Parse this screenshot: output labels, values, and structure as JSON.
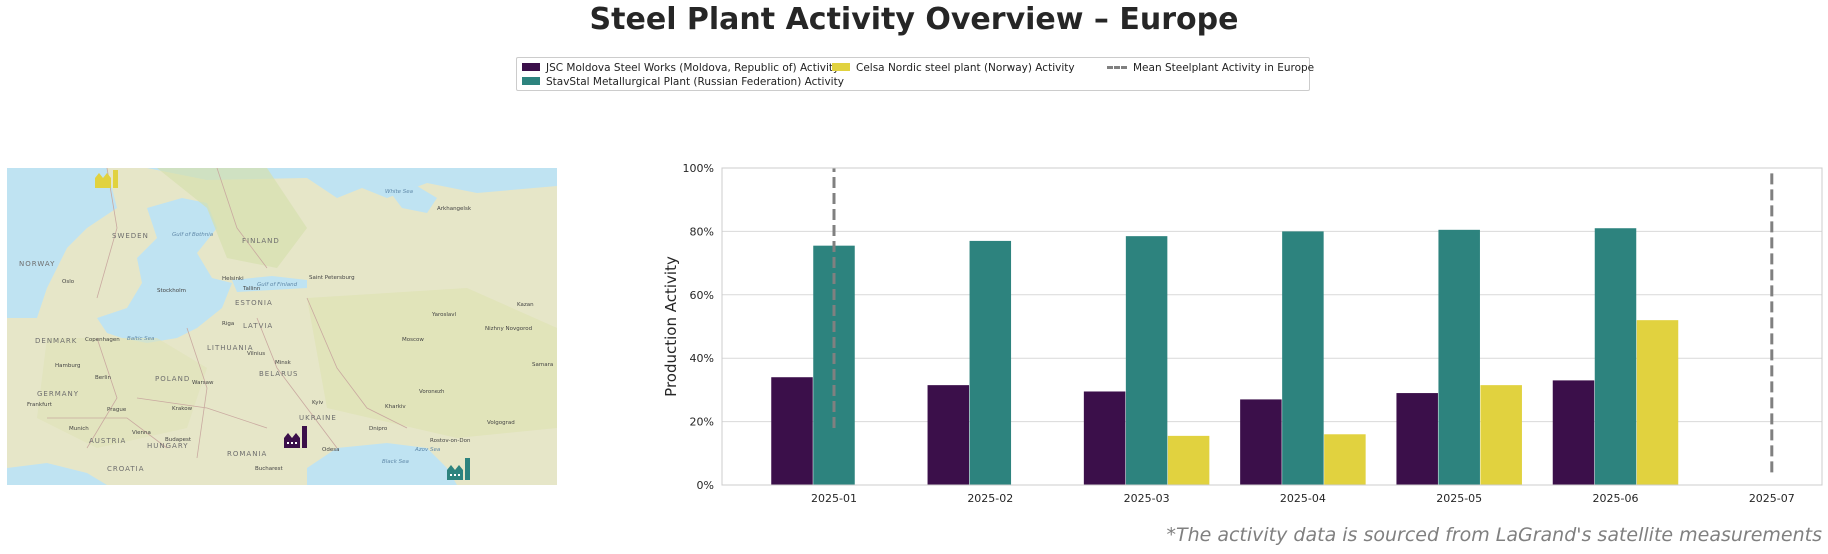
{
  "title": "Steel Plant Activity Overview – Europe",
  "legend": [
    {
      "label": "JSC Moldova Steel Works (Moldova, Republic of) Activity",
      "color": "#3b0f4a",
      "kind": "bar"
    },
    {
      "label": "StavStal Metallurgical Plant (Russian Federation) Activity",
      "color": "#2d837e",
      "kind": "bar"
    },
    {
      "label": "Celsa Nordic steel plant (Norway) Activity",
      "color": "#e1d23f",
      "kind": "bar"
    },
    {
      "label": "Mean Steelplant Activity in Europe",
      "color": "#808080",
      "kind": "dashed-line"
    }
  ],
  "map": {
    "country_labels": [
      "SWEDEN",
      "FINLAND",
      "NORWAY",
      "ESTONIA",
      "LATVIA",
      "LITHUANIA",
      "BELARUS",
      "POLAND",
      "GERMANY",
      "UKRAINE",
      "DENMARK",
      "AUSTRIA",
      "HUNGARY",
      "ROMANIA",
      "CROATIA"
    ],
    "city_labels": [
      "Oslo",
      "Stockholm",
      "Helsinki",
      "Tallinn",
      "Saint Petersburg",
      "Riga",
      "Vilnius",
      "Minsk",
      "Warsaw",
      "Berlin",
      "Copenhagen",
      "Hamburg",
      "Prague",
      "Vienna",
      "Budapest",
      "Bucharest",
      "Kyiv",
      "Odesa",
      "Moscow",
      "Arkhangelsk",
      "Yaroslavl",
      "Nizhny Novgorod",
      "Voronezh",
      "Kharkiv",
      "Dnipro",
      "Rostov-on-Don",
      "Volgograd",
      "Samara",
      "Kazan",
      "Krakow",
      "Munich",
      "Frankfurt",
      "Baltic Sea",
      "Gulf of Bothnia",
      "Gulf of Finland",
      "White Sea",
      "Black Sea",
      "Azov Sea"
    ],
    "plant_icons": [
      {
        "name": "Celsa Nordic steel plant",
        "color": "#e1d23f"
      },
      {
        "name": "JSC Moldova Steel Works",
        "color": "#3b0f4a"
      },
      {
        "name": "StavStal Metallurgical Plant",
        "color": "#2d837e"
      }
    ]
  },
  "chart_data": {
    "type": "bar",
    "categories": [
      "2025-01",
      "2025-02",
      "2025-03",
      "2025-04",
      "2025-05",
      "2025-06",
      "2025-07"
    ],
    "series": [
      {
        "name": "JSC Moldova Steel Works (Moldova, Republic of) Activity",
        "color": "#3b0f4a",
        "values": [
          34,
          31.5,
          29.5,
          27,
          29,
          33,
          null
        ]
      },
      {
        "name": "StavStal Metallurgical Plant (Russian Federation) Activity",
        "color": "#2d837e",
        "values": [
          75.5,
          77,
          78.5,
          80,
          80.5,
          81,
          null
        ]
      },
      {
        "name": "Celsa Nordic steel plant (Norway) Activity",
        "color": "#e1d23f",
        "values": [
          null,
          null,
          15.5,
          16,
          31.5,
          52,
          null
        ]
      }
    ],
    "mean_line": {
      "name": "Mean Steelplant Activity in Europe",
      "color": "#808080",
      "style": "dashed",
      "at_categories": [
        "2025-01",
        "2025-07"
      ],
      "ranges": [
        [
          18,
          100
        ],
        [
          4,
          100
        ]
      ]
    },
    "ylabel": "Production Activity",
    "xlabel": "",
    "ylim": [
      0,
      100
    ],
    "yticks": [
      "0%",
      "20%",
      "40%",
      "60%",
      "80%",
      "100%"
    ],
    "grid": true
  },
  "footnote": "*The activity data is sourced from LaGrand's satellite measurements"
}
